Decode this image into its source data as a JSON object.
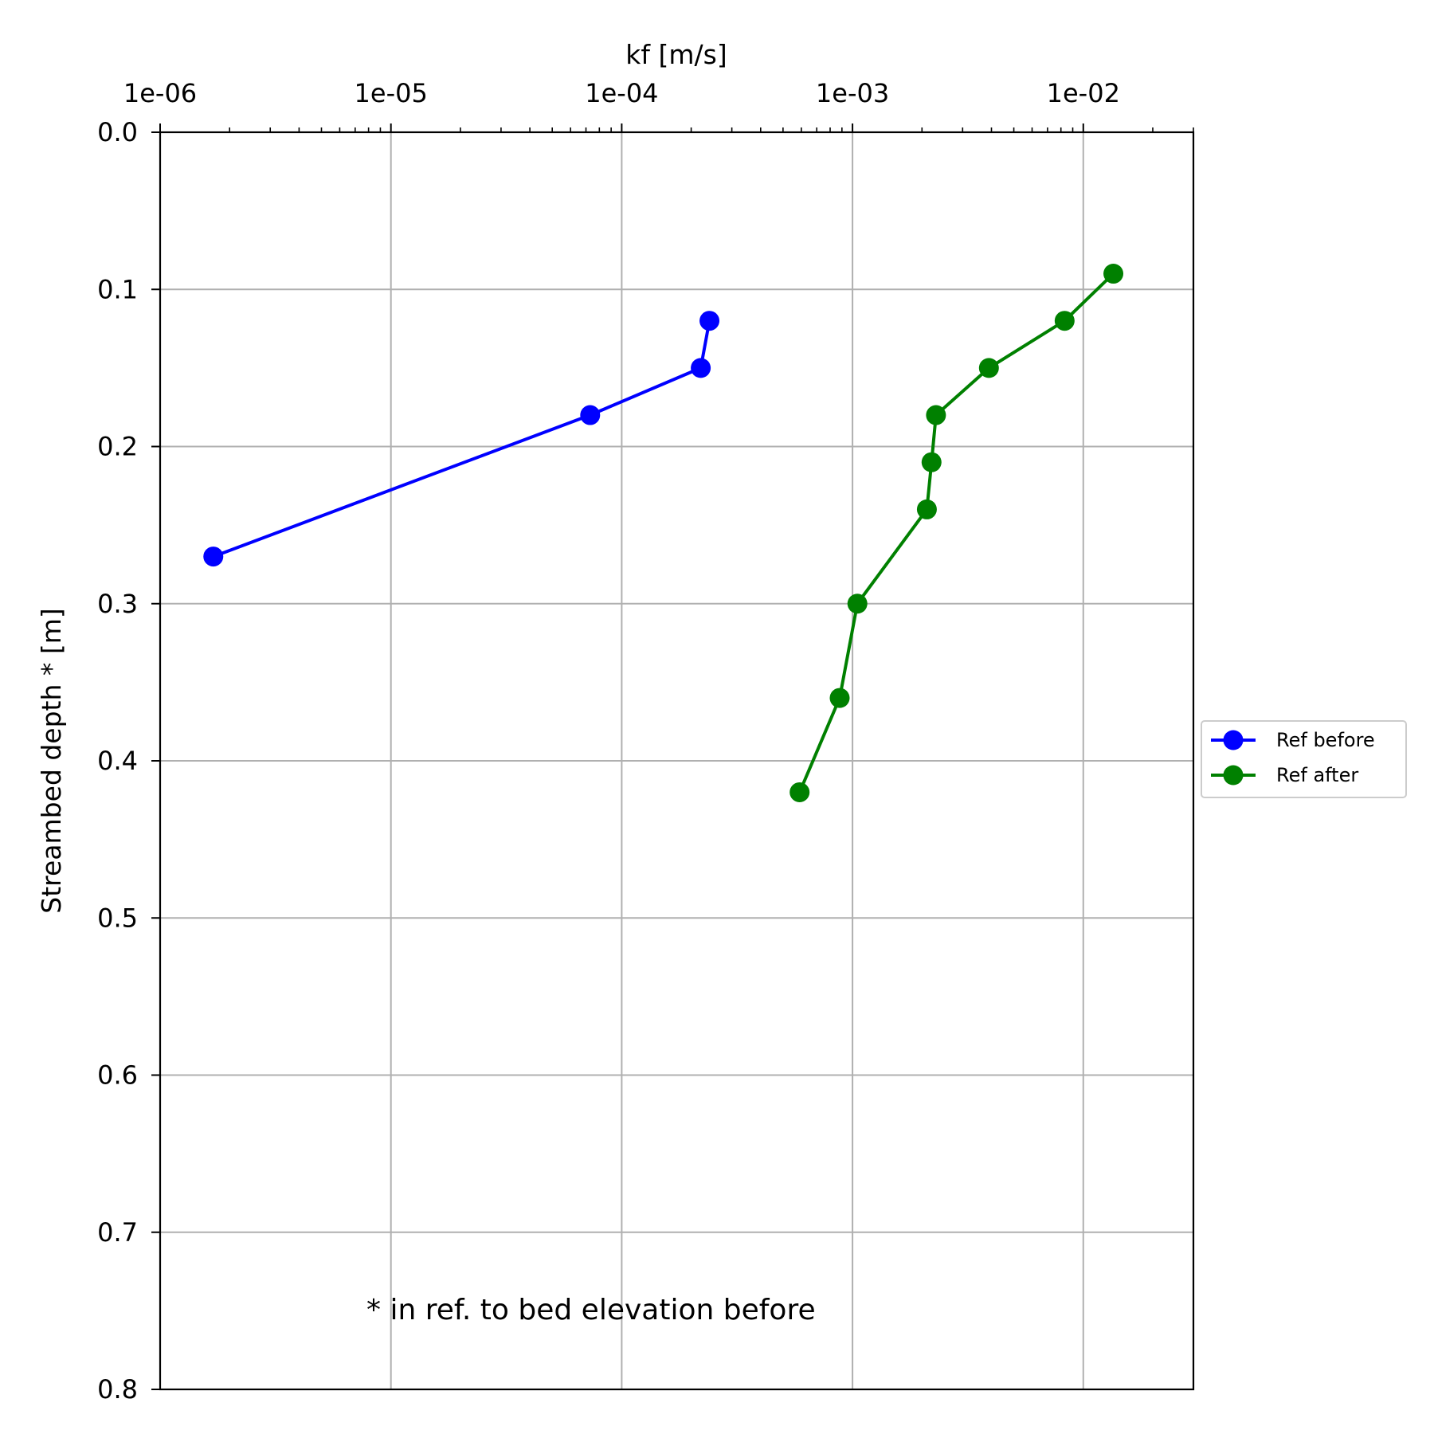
{
  "chart_data": {
    "type": "line",
    "xlabel": "kf [m/s]",
    "ylabel": "Streambed depth * [m]",
    "x_scale": "log",
    "x_axis_position": "top",
    "xlim": [
      1e-06,
      0.03
    ],
    "ylim": [
      0.8,
      0.0
    ],
    "y_inverted": true,
    "x_ticks": [
      1e-06,
      1e-05,
      0.0001,
      0.001,
      0.01
    ],
    "x_tick_labels": [
      "1e-06",
      "1e-05",
      "1e-04",
      "1e-03",
      "1e-02"
    ],
    "y_ticks": [
      0.0,
      0.1,
      0.2,
      0.3,
      0.4,
      0.5,
      0.6,
      0.7,
      0.8
    ],
    "y_tick_labels": [
      "0.0",
      "0.1",
      "0.2",
      "0.3",
      "0.4",
      "0.5",
      "0.6",
      "0.7",
      "0.8"
    ],
    "grid": true,
    "legend_position": "center-right outside",
    "annotation": "* in ref. to bed elevation before",
    "series": [
      {
        "name": "Ref before",
        "color": "#0000ff",
        "marker": "circle",
        "points": [
          {
            "x": 0.00024,
            "y": 0.12
          },
          {
            "x": 0.00022,
            "y": 0.15
          },
          {
            "x": 7.3e-05,
            "y": 0.18
          },
          {
            "x": 1.7e-06,
            "y": 0.27
          }
        ]
      },
      {
        "name": "Ref after",
        "color": "#008000",
        "marker": "circle",
        "points": [
          {
            "x": 0.0135,
            "y": 0.09
          },
          {
            "x": 0.0083,
            "y": 0.12
          },
          {
            "x": 0.0039,
            "y": 0.15
          },
          {
            "x": 0.0023,
            "y": 0.18
          },
          {
            "x": 0.0022,
            "y": 0.21
          },
          {
            "x": 0.0021,
            "y": 0.24
          },
          {
            "x": 0.00105,
            "y": 0.3
          },
          {
            "x": 0.00088,
            "y": 0.36
          },
          {
            "x": 0.00059,
            "y": 0.42
          }
        ]
      }
    ]
  }
}
